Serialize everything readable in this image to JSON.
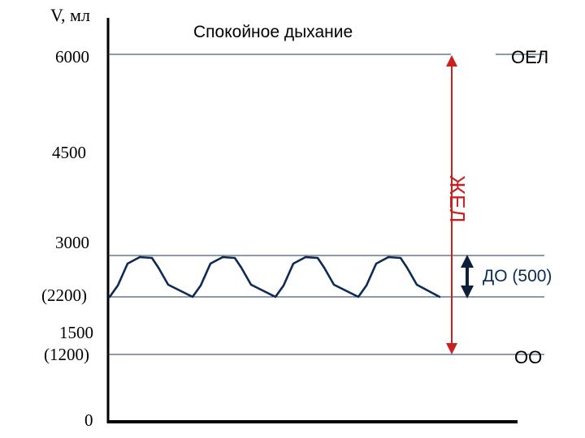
{
  "axis": {
    "ylabel": "V, мл",
    "ticks": [
      "6000",
      "4500",
      "3000",
      "(2200)",
      "1500",
      "(1200)",
      "0"
    ]
  },
  "title": "Спокойное дыхание",
  "levels": {
    "oel": "ОЕЛ",
    "oo": "ОО",
    "zhel": "ЖЕЛ",
    "do": "ДО (500)"
  },
  "colors": {
    "axis": "#000000",
    "grid": "#1f3550",
    "wave": "#0d2a55",
    "zhel": "#cc1f1f",
    "do_arrow": "#0d1f3a"
  },
  "icons": {
    "zhel_arrow": "double-headed-vertical-arrow",
    "do_arrow": "double-headed-vertical-arrow"
  }
}
